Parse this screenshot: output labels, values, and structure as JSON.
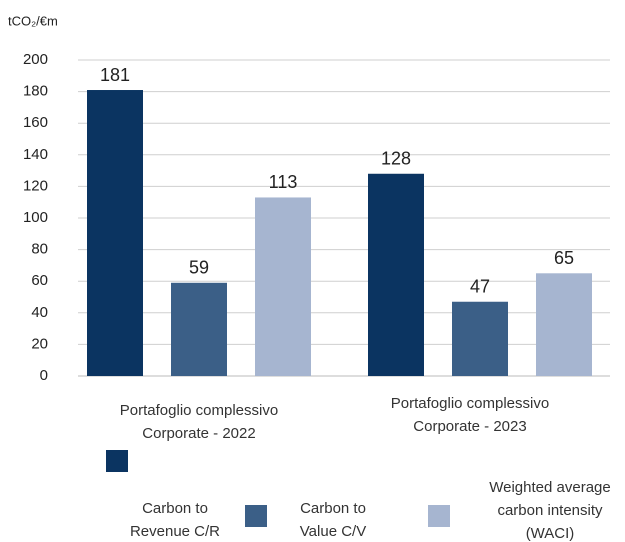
{
  "chart_data": {
    "type": "bar",
    "y_axis_label": "tCO₂/€m",
    "categories": [
      "Portafoglio complessivo Corporate - 2022",
      "Portafoglio complessivo Corporate - 2023"
    ],
    "series": [
      {
        "name": "Carbon to Revenue C/R",
        "color": "#0b3461",
        "values": [
          181,
          128
        ]
      },
      {
        "name": "Carbon to Value C/V",
        "color": "#3b5f87",
        "values": [
          59,
          47
        ]
      },
      {
        "name": "Weighted average carbon intensity (WACI)",
        "color": "#a6b5d0",
        "values": [
          113,
          65
        ]
      }
    ],
    "ylim": [
      0,
      200
    ],
    "yticks": [
      0,
      20,
      40,
      60,
      80,
      100,
      120,
      140,
      160,
      180,
      200
    ],
    "grid": true
  }
}
